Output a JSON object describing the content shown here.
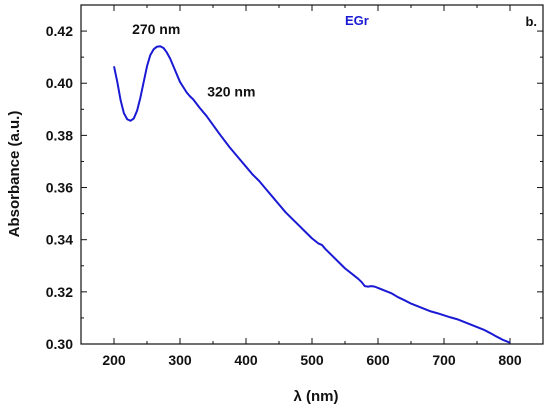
{
  "chart_data": {
    "type": "line",
    "xlabel": "λ (nm)",
    "ylabel": "Absorbance (a.u.)",
    "xlim": [
      150,
      850
    ],
    "ylim": [
      0.3,
      0.43
    ],
    "x_ticks": [
      200,
      300,
      400,
      500,
      600,
      700,
      800
    ],
    "y_ticks": [
      0.3,
      0.32,
      0.34,
      0.36,
      0.38,
      0.4,
      0.42
    ],
    "y_tick_labels": [
      "0.30",
      "0.32",
      "0.34",
      "0.36",
      "0.38",
      "0.40",
      "0.42"
    ],
    "grid": false,
    "legend_position": "top-center",
    "panel_label": "b.",
    "series": [
      {
        "name": "EGr",
        "color": "#1a1ad4",
        "x": [
          200,
          205,
          210,
          215,
          220,
          225,
          230,
          235,
          240,
          245,
          250,
          255,
          260,
          265,
          270,
          275,
          280,
          285,
          290,
          295,
          300,
          305,
          310,
          315,
          320,
          330,
          340,
          350,
          360,
          375,
          390,
          400,
          410,
          420,
          430,
          440,
          450,
          460,
          470,
          480,
          490,
          500,
          510,
          515,
          520,
          530,
          540,
          550,
          560,
          570,
          575,
          580,
          585,
          590,
          595,
          600,
          610,
          620,
          630,
          640,
          650,
          660,
          670,
          680,
          690,
          700,
          710,
          720,
          730,
          740,
          750,
          760,
          770,
          780,
          790,
          800
        ],
        "y": [
          0.4065,
          0.4005,
          0.3935,
          0.3885,
          0.3862,
          0.3856,
          0.3865,
          0.3895,
          0.3945,
          0.4005,
          0.4065,
          0.4108,
          0.413,
          0.414,
          0.4142,
          0.4135,
          0.4118,
          0.4095,
          0.4065,
          0.4035,
          0.4005,
          0.3985,
          0.3965,
          0.395,
          0.3938,
          0.3905,
          0.3875,
          0.384,
          0.3805,
          0.3755,
          0.371,
          0.368,
          0.365,
          0.3625,
          0.3595,
          0.3565,
          0.3535,
          0.3505,
          0.348,
          0.3455,
          0.343,
          0.3405,
          0.3385,
          0.338,
          0.3365,
          0.334,
          0.3315,
          0.329,
          0.327,
          0.325,
          0.3238,
          0.3222,
          0.322,
          0.3222,
          0.322,
          0.3215,
          0.3205,
          0.3195,
          0.318,
          0.3168,
          0.3155,
          0.3145,
          0.3135,
          0.3125,
          0.3118,
          0.311,
          0.3102,
          0.3095,
          0.3085,
          0.3075,
          0.3065,
          0.3055,
          0.3042,
          0.3028,
          0.3015,
          0.3005
        ]
      }
    ],
    "annotations": [
      {
        "text": "270 nm",
        "x": 270,
        "y": 0.4142
      },
      {
        "text": "320 nm",
        "x": 320,
        "y": 0.3938
      }
    ]
  }
}
